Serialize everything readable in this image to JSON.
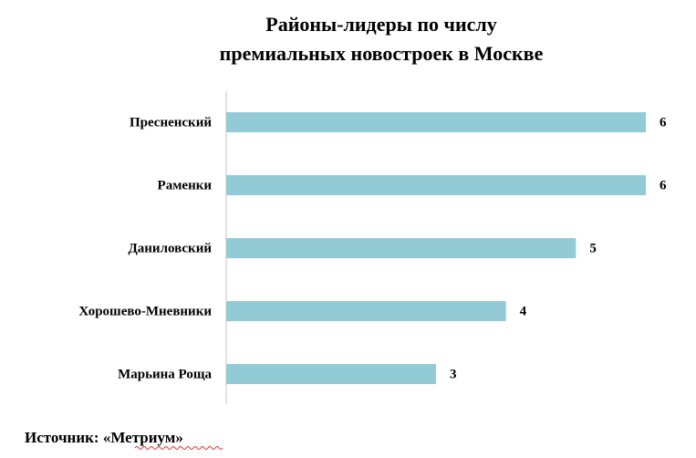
{
  "chart_data": {
    "type": "bar",
    "orientation": "horizontal",
    "title": [
      "Районы-лидеры по числу",
      "премиальных новостроек в Москве"
    ],
    "categories": [
      "Пресненский",
      "Раменки",
      "Даниловский",
      "Хорошево-Мневники",
      "Марьина Роща"
    ],
    "values": [
      6,
      6,
      5,
      4,
      3
    ],
    "color": "#92cad5",
    "xlim": [
      0,
      6
    ]
  },
  "source": "Источник: «Метриум»"
}
